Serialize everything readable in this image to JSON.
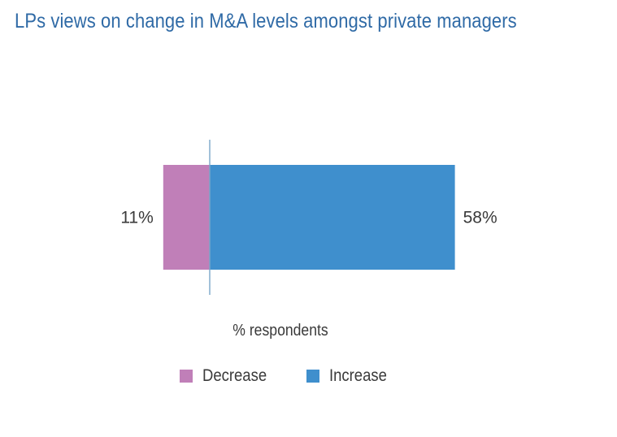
{
  "title": "LPs views on change in M&A levels amongst private managers",
  "colors": {
    "title": "#2f6aa6",
    "decrease": "#c07fb8",
    "increase": "#3f8fcd",
    "axis": "#7aa7c9",
    "text": "#3a3a3a"
  },
  "chart_data": {
    "type": "bar",
    "orientation": "horizontal",
    "stacked": "diverging",
    "title": "LPs views on change in M&A levels amongst private managers",
    "xlabel": "% respondents",
    "ylabel": "",
    "series": [
      {
        "name": "Decrease",
        "values": [
          -11
        ],
        "label": "11%",
        "color": "#c07fb8"
      },
      {
        "name": "Increase",
        "values": [
          58
        ],
        "label": "58%",
        "color": "#3f8fcd"
      }
    ],
    "grid": false,
    "legend_position": "bottom"
  },
  "legend": {
    "items": [
      {
        "label": "Decrease",
        "color": "#c07fb8"
      },
      {
        "label": "Increase",
        "color": "#3f8fcd"
      }
    ]
  }
}
